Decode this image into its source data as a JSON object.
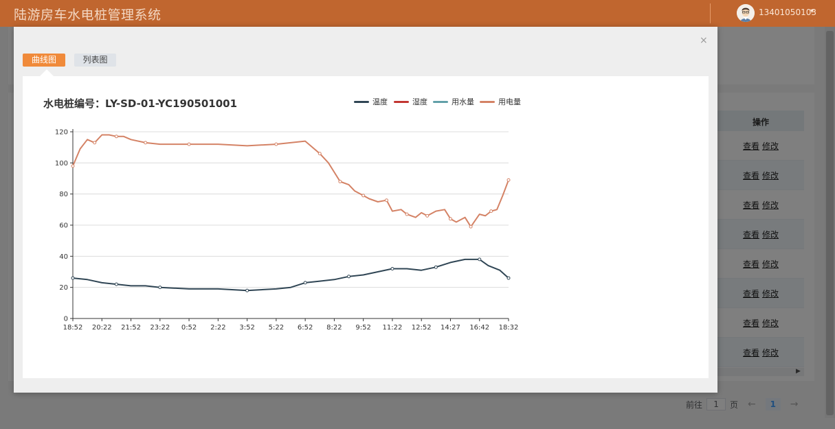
{
  "header": {
    "title": "陆游房车水电桩管理系统",
    "username": "13401050103"
  },
  "background": {
    "operations_header": "操作",
    "row_actions": [
      "查看",
      "修改"
    ],
    "row_count": 8,
    "pagination": {
      "goto_label": "前往",
      "page_value": "1",
      "page_suffix": "页",
      "current_page": "1",
      "prev": "←",
      "next": "→"
    }
  },
  "modal": {
    "close": "×",
    "tabs": [
      {
        "label": "曲线图",
        "active": true
      },
      {
        "label": "列表图",
        "active": false
      }
    ]
  },
  "chart_data": {
    "type": "line",
    "title": "水电桩编号：LY-SD-01-YC190501001",
    "legend": [
      {
        "name": "温度",
        "color": "#2f4554"
      },
      {
        "name": "湿度",
        "color": "#c23531"
      },
      {
        "name": "用水量",
        "color": "#61a0a8"
      },
      {
        "name": "用电量",
        "color": "#d48265"
      }
    ],
    "x_ticks": [
      "18:52",
      "20:22",
      "21:52",
      "23:22",
      "0:52",
      "2:22",
      "3:52",
      "5:22",
      "6:52",
      "8:22",
      "9:52",
      "11:22",
      "12:52",
      "14:27",
      "16:42",
      "18:32"
    ],
    "ylim": [
      0,
      120
    ],
    "y_ticks": [
      0,
      20,
      40,
      60,
      80,
      100,
      120
    ],
    "series": [
      {
        "name": "用电量",
        "color": "#d48265",
        "x": [
          0,
          0.25,
          0.5,
          0.75,
          1.0,
          1.25,
          1.5,
          1.75,
          2.0,
          2.5,
          3.0,
          3.5,
          4.0,
          5.0,
          6.0,
          7.0,
          7.5,
          8.0,
          8.5,
          8.8,
          9.0,
          9.2,
          9.5,
          9.7,
          10.0,
          10.2,
          10.5,
          10.8,
          11.0,
          11.3,
          11.5,
          11.8,
          12.0,
          12.2,
          12.5,
          12.8,
          13.0,
          13.2,
          13.5,
          13.7,
          14.0,
          14.2,
          14.4,
          14.6,
          14.8,
          15.0
        ],
        "y": [
          98,
          109,
          115,
          113,
          118,
          118,
          117,
          117,
          115,
          113,
          112,
          112,
          112,
          112,
          111,
          112,
          113,
          114,
          106,
          100,
          94,
          88,
          86,
          82,
          79,
          77,
          75,
          76,
          69,
          70,
          67,
          65,
          68,
          66,
          69,
          70,
          64,
          62,
          65,
          59,
          67,
          66,
          69,
          70,
          79,
          89
        ]
      },
      {
        "name": "温度",
        "color": "#2f4554",
        "x": [
          0,
          0.5,
          1.0,
          1.5,
          2.0,
          2.5,
          3.0,
          4.0,
          5.0,
          6.0,
          7.0,
          7.5,
          8.0,
          8.5,
          9.0,
          9.5,
          10.0,
          10.5,
          11.0,
          11.5,
          12.0,
          12.5,
          13.0,
          13.5,
          14.0,
          14.3,
          14.7,
          15.0
        ],
        "y": [
          26,
          25,
          23,
          22,
          21,
          21,
          20,
          19,
          19,
          18,
          19,
          20,
          23,
          24,
          25,
          27,
          28,
          30,
          32,
          32,
          31,
          33,
          36,
          38,
          38,
          34,
          31,
          26
        ]
      },
      {
        "name": "湿度",
        "color": "#c23531",
        "x": [],
        "y": []
      },
      {
        "name": "用水量",
        "color": "#61a0a8",
        "x": [],
        "y": []
      }
    ]
  }
}
